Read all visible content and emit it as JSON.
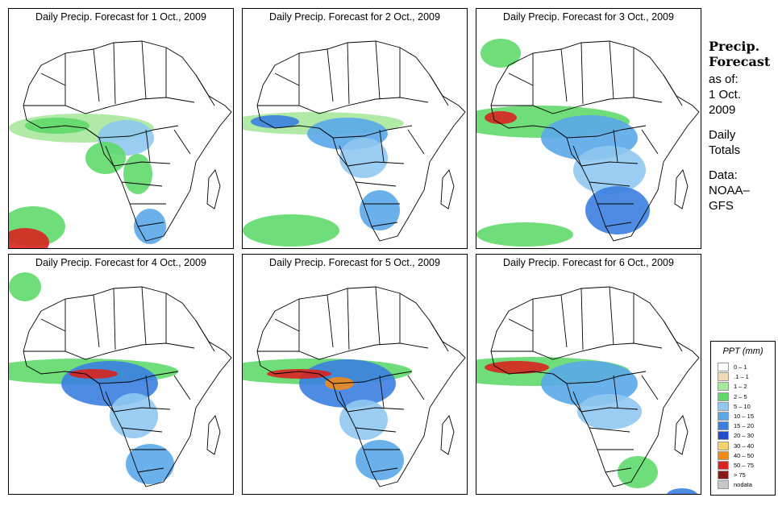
{
  "panels": [
    {
      "title": "Daily Precip. Forecast for  1 Oct., 2009"
    },
    {
      "title": "Daily Precip. Forecast for  2 Oct., 2009"
    },
    {
      "title": "Daily Precip. Forecast for  3 Oct., 2009"
    },
    {
      "title": "Daily Precip. Forecast for  4 Oct., 2009"
    },
    {
      "title": "Daily Precip. Forecast for  5 Oct., 2009"
    },
    {
      "title": "Daily Precip. Forecast for  6 Oct., 2009"
    }
  ],
  "side": {
    "title1": "Precip.",
    "title2": "Forecast",
    "asof": "as of:",
    "date1": "1 Oct.",
    "date2": "2009",
    "daily": "Daily",
    "totals": "Totals",
    "data": "Data:",
    "src1": "NOAA–",
    "src2": "GFS"
  },
  "legend": {
    "title": "PPT (mm)",
    "items": [
      {
        "label": "0 – 1",
        "color": "#ffffff"
      },
      {
        "label": ".1 – 1",
        "color": "#f0d9b5"
      },
      {
        "label": "1 – 2",
        "color": "#a8e89c"
      },
      {
        "label": "2 – 5",
        "color": "#5fd96a"
      },
      {
        "label": "5 – 10",
        "color": "#8fc8f0"
      },
      {
        "label": "10 – 15",
        "color": "#5aa8ea"
      },
      {
        "label": "15 – 20",
        "color": "#3b7fe0"
      },
      {
        "label": "20 – 30",
        "color": "#1f4fc8"
      },
      {
        "label": "30 – 40",
        "color": "#f5d26b"
      },
      {
        "label": "40 – 50",
        "color": "#f08a1a"
      },
      {
        "label": "50 – 75",
        "color": "#d8231e"
      },
      {
        "label": "> 75",
        "color": "#8a1a14"
      },
      {
        "label": "nodata",
        "color": "#c8c8c8"
      }
    ]
  }
}
